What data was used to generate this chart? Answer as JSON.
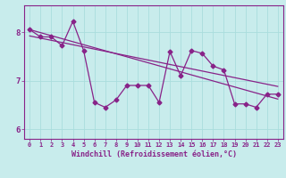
{
  "xlabel": "Windchill (Refroidissement éolien,°C)",
  "bg_color": "#c8ecec",
  "line_color": "#882288",
  "grid_color": "#aadddd",
  "xlim": [
    -0.5,
    23.5
  ],
  "ylim": [
    5.8,
    8.55
  ],
  "yticks": [
    6,
    7,
    8
  ],
  "xticks": [
    0,
    1,
    2,
    3,
    4,
    5,
    6,
    7,
    8,
    9,
    10,
    11,
    12,
    13,
    14,
    15,
    16,
    17,
    18,
    19,
    20,
    21,
    22,
    23
  ],
  "main_x": [
    0,
    1,
    2,
    3,
    4,
    5,
    6,
    7,
    8,
    9,
    10,
    11,
    12,
    13,
    14,
    15,
    16,
    17,
    18,
    19,
    20,
    21,
    22,
    23
  ],
  "main_y": [
    8.05,
    7.9,
    7.9,
    7.72,
    8.22,
    7.62,
    6.55,
    6.45,
    6.6,
    6.9,
    6.9,
    6.9,
    6.55,
    7.6,
    7.1,
    7.62,
    7.56,
    7.3,
    7.22,
    6.52,
    6.52,
    6.45,
    6.72,
    6.72
  ],
  "trend1_x": [
    0,
    23
  ],
  "trend1_y": [
    8.05,
    6.62
  ],
  "trend2_x": [
    0,
    23
  ],
  "trend2_y": [
    7.92,
    6.88
  ],
  "marker": "D",
  "markersize": 2.5,
  "linewidth": 0.9,
  "tick_fontsize": 5.0,
  "ytick_fontsize": 6.5,
  "xlabel_fontsize": 6.0,
  "xlabel_fontweight": "bold"
}
